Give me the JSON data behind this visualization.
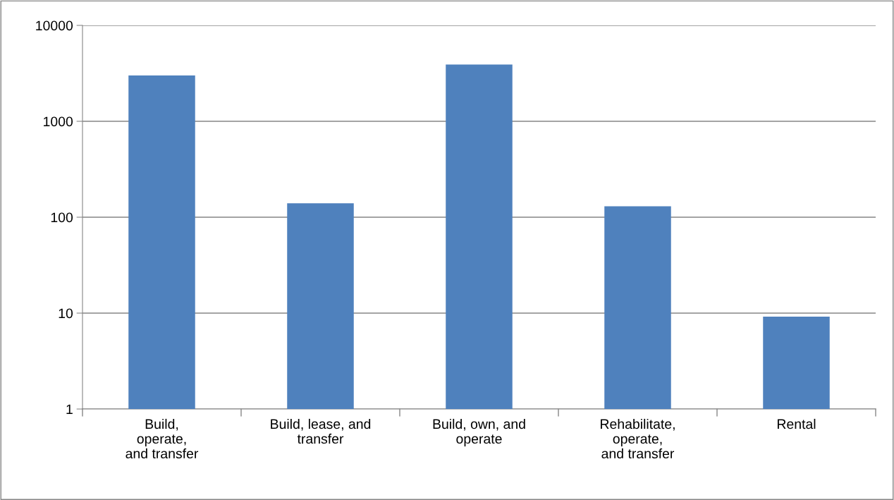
{
  "chart_data": {
    "type": "bar",
    "categories": [
      "Build,\noperate,\nand transfer",
      "Build, lease, and\ntransfer",
      "Build, own, and\noperate",
      "Rehabilitate,\noperate,\nand transfer",
      "Rental"
    ],
    "values": [
      3000,
      140,
      3900,
      130,
      9.2
    ],
    "color": "#4f81bd",
    "log": "y",
    "ylim": [
      1,
      10000
    ],
    "yticks": [
      1,
      10,
      100,
      1000,
      10000
    ],
    "grid": "y"
  }
}
